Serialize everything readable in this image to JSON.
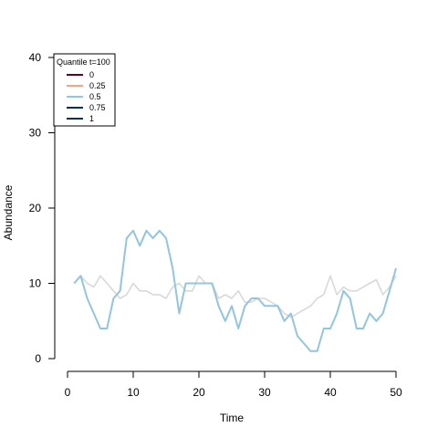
{
  "chart_data": {
    "type": "line",
    "xlabel": "Time",
    "ylabel": "Abundance",
    "xlim": [
      0,
      50
    ],
    "ylim": [
      0,
      40
    ],
    "xticks": [
      "0",
      "10",
      "20",
      "30",
      "40",
      "50"
    ],
    "yticks": [
      "0",
      "10",
      "20",
      "30",
      "40"
    ],
    "grid": false,
    "legend": {
      "title": "Quantile t=100",
      "placement": "top-left",
      "entries": [
        {
          "label": "0",
          "color": "#67001f"
        },
        {
          "label": "0.25",
          "color": "#f4a582"
        },
        {
          "label": "0.5",
          "color": "#92c5de"
        },
        {
          "label": "0.75",
          "color": "#053061"
        },
        {
          "label": "1",
          "color": "#08306b"
        }
      ]
    },
    "series": [
      {
        "color": "#d9d9d9",
        "x": [
          1,
          2,
          3,
          4,
          5,
          6,
          7,
          8,
          9,
          10,
          11,
          12,
          13,
          14,
          15,
          16,
          17,
          18,
          19,
          20,
          21,
          22,
          23,
          24,
          25,
          26,
          27,
          28,
          29,
          30,
          31,
          32,
          33,
          34,
          35,
          36,
          37,
          38,
          39,
          40,
          41,
          42,
          43,
          44,
          45,
          46,
          47,
          48,
          49,
          50
        ],
        "y": [
          10,
          11,
          10,
          9.5,
          11,
          10,
          9,
          8,
          8.5,
          10,
          9,
          9,
          8.5,
          8.5,
          8,
          9.5,
          10,
          9,
          9,
          11,
          10,
          10,
          8,
          8.5,
          8,
          9,
          7.5,
          7.5,
          8,
          8,
          7.5,
          7,
          6,
          5.5,
          6,
          6.5,
          7,
          8,
          8.5,
          11,
          8.5,
          9.5,
          9,
          9,
          9.5,
          10,
          10.5,
          8.5,
          9.5,
          11
        ]
      },
      {
        "color": "#92c5de",
        "x": [
          1,
          2,
          3,
          4,
          5,
          6,
          7,
          8,
          9,
          10,
          11,
          12,
          13,
          14,
          15,
          16,
          17,
          18,
          19,
          20,
          21,
          22,
          23,
          24,
          25,
          26,
          27,
          28,
          29,
          30,
          31,
          32,
          33,
          34,
          35,
          36,
          37,
          38,
          39,
          40,
          41,
          42,
          43,
          44,
          45,
          46,
          47,
          48,
          49,
          50
        ],
        "y": [
          10,
          11,
          8,
          6,
          4,
          4,
          8,
          9,
          16,
          17,
          15,
          17,
          16,
          17,
          16,
          12,
          6,
          10,
          10,
          10,
          10,
          10,
          7,
          5,
          7,
          4,
          7,
          8,
          8,
          7,
          7,
          7,
          5,
          6,
          3,
          2,
          1,
          1,
          4,
          4,
          6,
          9,
          8,
          4,
          4,
          6,
          5,
          6,
          9,
          12
        ]
      }
    ]
  }
}
